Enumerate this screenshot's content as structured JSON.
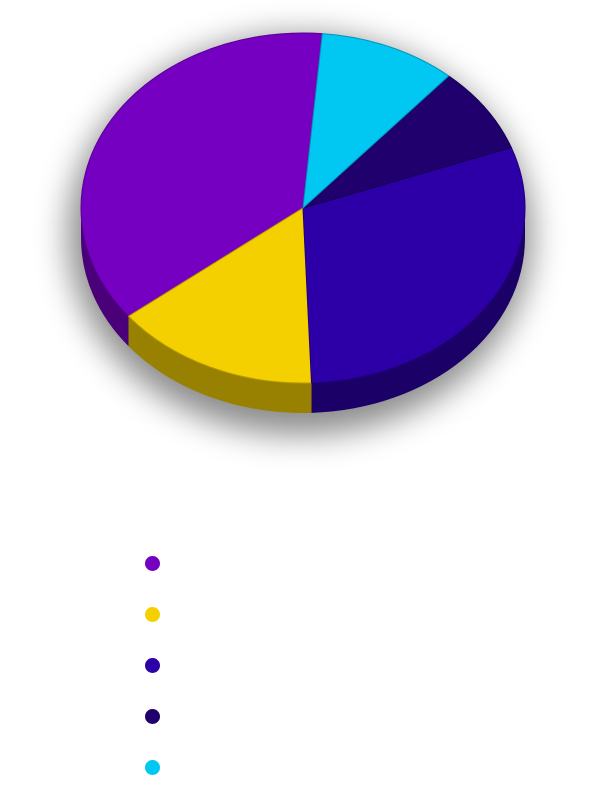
{
  "chart_data": {
    "type": "pie",
    "style": "3d",
    "legend_position": "bottom",
    "title": "",
    "slices": [
      {
        "name": "",
        "value": 37,
        "color": "#7600C1"
      },
      {
        "name": "",
        "value": 15,
        "color": "#F5D000"
      },
      {
        "name": "",
        "value": 30,
        "color": "#2C00A6"
      },
      {
        "name": "",
        "value": 8,
        "color": "#1F006D"
      },
      {
        "name": "",
        "value": 10,
        "color": "#00C8F2"
      }
    ]
  }
}
